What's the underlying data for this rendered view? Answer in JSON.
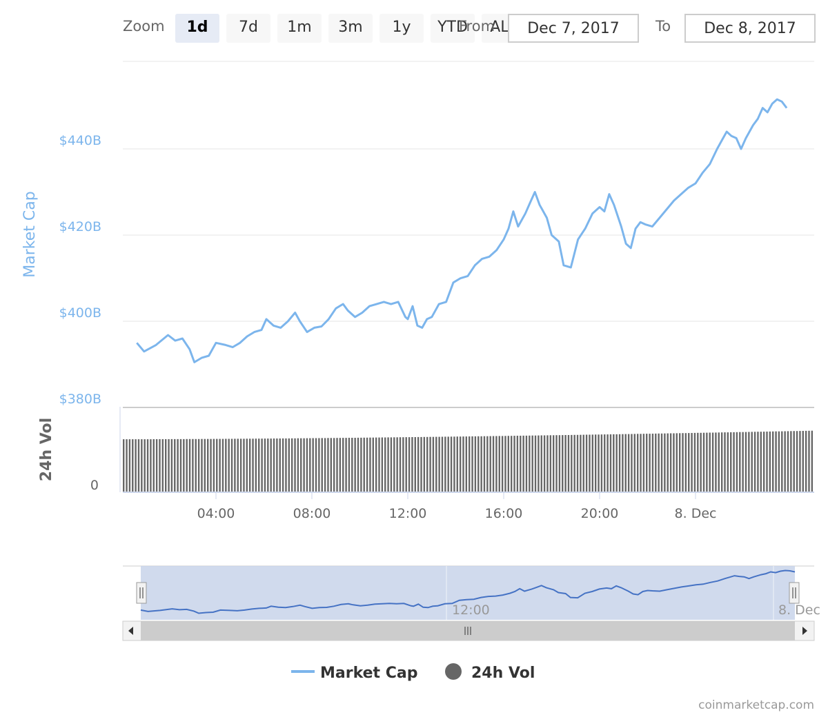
{
  "rangeSelector": {
    "zoom_label": "Zoom",
    "buttons": [
      "1d",
      "7d",
      "1m",
      "3m",
      "1y",
      "YTD",
      "ALL"
    ],
    "active": "1d",
    "from_label": "From",
    "from_value": "Dec 7, 2017",
    "to_label": "To",
    "to_value": "Dec 8, 2017"
  },
  "credit": "coinmarketcap.com",
  "colors": {
    "market_cap": "#7cb5ec",
    "volume": "#666666",
    "navigator_line": "#4572c4",
    "navigator_mask": "#c8d3ea"
  },
  "chart_data": {
    "type": "line",
    "x_unit": "hours after Dec 7, 2017 00:00 (axis times)",
    "x_ticks": [
      "04:00",
      "08:00",
      "12:00",
      "16:00",
      "20:00",
      "8. Dec"
    ],
    "y_axis_label": "Market Cap",
    "y_ticks": [
      "$440B",
      "$420B",
      "$400B",
      "$380B"
    ],
    "ylim": [
      379,
      454
    ],
    "vol_axis_label": "24h Vol",
    "vol_ticks": [
      "0"
    ],
    "grid": true,
    "legend_position": "bottom-center",
    "series": [
      {
        "name": "Market Cap",
        "unit": "billion USD",
        "points": [
          [
            0.7,
            395.0
          ],
          [
            1.0,
            393.0
          ],
          [
            1.5,
            394.5
          ],
          [
            2.0,
            396.8
          ],
          [
            2.3,
            395.5
          ],
          [
            2.6,
            396.0
          ],
          [
            2.9,
            393.5
          ],
          [
            3.1,
            390.5
          ],
          [
            3.4,
            391.5
          ],
          [
            3.7,
            392.0
          ],
          [
            4.0,
            395.0
          ],
          [
            4.4,
            394.5
          ],
          [
            4.7,
            394.0
          ],
          [
            5.0,
            395.0
          ],
          [
            5.3,
            396.5
          ],
          [
            5.6,
            397.5
          ],
          [
            5.9,
            398.0
          ],
          [
            6.1,
            400.5
          ],
          [
            6.4,
            399.0
          ],
          [
            6.7,
            398.5
          ],
          [
            7.0,
            400.0
          ],
          [
            7.3,
            402.0
          ],
          [
            7.5,
            400.0
          ],
          [
            7.8,
            397.5
          ],
          [
            8.1,
            398.5
          ],
          [
            8.4,
            398.8
          ],
          [
            8.7,
            400.5
          ],
          [
            9.0,
            403.0
          ],
          [
            9.3,
            404.0
          ],
          [
            9.5,
            402.5
          ],
          [
            9.8,
            401.0
          ],
          [
            10.1,
            402.0
          ],
          [
            10.4,
            403.5
          ],
          [
            10.7,
            404.0
          ],
          [
            11.0,
            404.5
          ],
          [
            11.3,
            404.0
          ],
          [
            11.6,
            404.5
          ],
          [
            11.9,
            401.0
          ],
          [
            12.0,
            400.5
          ],
          [
            12.2,
            403.5
          ],
          [
            12.4,
            399.0
          ],
          [
            12.6,
            398.5
          ],
          [
            12.8,
            400.5
          ],
          [
            13.0,
            401.0
          ],
          [
            13.3,
            404.0
          ],
          [
            13.6,
            404.5
          ],
          [
            13.9,
            409.0
          ],
          [
            14.2,
            410.0
          ],
          [
            14.5,
            410.5
          ],
          [
            14.8,
            413.0
          ],
          [
            15.1,
            414.5
          ],
          [
            15.4,
            415.0
          ],
          [
            15.7,
            416.5
          ],
          [
            16.0,
            419.0
          ],
          [
            16.2,
            421.5
          ],
          [
            16.4,
            425.5
          ],
          [
            16.6,
            422.0
          ],
          [
            16.9,
            425.0
          ],
          [
            17.1,
            427.5
          ],
          [
            17.3,
            430.0
          ],
          [
            17.5,
            427.0
          ],
          [
            17.6,
            426.0
          ],
          [
            17.8,
            424.0
          ],
          [
            18.0,
            420.0
          ],
          [
            18.3,
            418.5
          ],
          [
            18.5,
            413.0
          ],
          [
            18.8,
            412.5
          ],
          [
            19.1,
            419.0
          ],
          [
            19.4,
            421.5
          ],
          [
            19.7,
            425.0
          ],
          [
            20.0,
            426.5
          ],
          [
            20.2,
            425.5
          ],
          [
            20.4,
            429.5
          ],
          [
            20.6,
            427.0
          ],
          [
            20.9,
            422.0
          ],
          [
            21.1,
            418.0
          ],
          [
            21.3,
            417.0
          ],
          [
            21.5,
            421.5
          ],
          [
            21.7,
            423.0
          ],
          [
            21.9,
            422.5
          ],
          [
            22.2,
            422.0
          ],
          [
            22.5,
            424.0
          ],
          [
            22.8,
            426.0
          ],
          [
            23.1,
            428.0
          ],
          [
            23.4,
            429.5
          ],
          [
            23.7,
            431.0
          ],
          [
            24.0,
            432.0
          ],
          [
            24.3,
            434.5
          ],
          [
            24.6,
            436.5
          ],
          [
            24.9,
            440.0
          ],
          [
            25.1,
            442.0
          ],
          [
            25.3,
            444.0
          ],
          [
            25.5,
            443.0
          ],
          [
            25.7,
            442.5
          ],
          [
            25.9,
            440.0
          ],
          [
            26.1,
            442.5
          ],
          [
            26.4,
            445.5
          ],
          [
            26.6,
            447.0
          ],
          [
            26.8,
            449.5
          ],
          [
            27.0,
            448.5
          ],
          [
            27.2,
            450.5
          ],
          [
            27.4,
            451.5
          ],
          [
            27.6,
            451.0
          ],
          [
            27.8,
            449.5
          ]
        ]
      },
      {
        "name": "24h Vol",
        "unit": "relative to axis range",
        "type": "column",
        "bar_count": 230,
        "level_start": 0.62,
        "level_end": 0.72
      }
    ]
  }
}
